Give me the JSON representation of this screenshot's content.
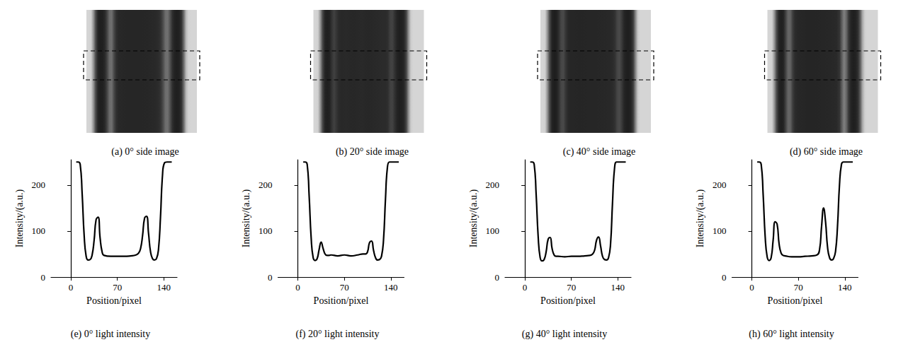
{
  "chart_data": [
    {
      "type": "line",
      "title": "(e) 0° light intensity",
      "image_caption": "(a) 0° side image",
      "x_label": "Position/pixel",
      "y_label": "Intensity/(a.u.)",
      "color": "#000000",
      "x": [
        8,
        11,
        14,
        17,
        20,
        23,
        26,
        29,
        32,
        35,
        38,
        41,
        44,
        47,
        50,
        60,
        70,
        80,
        90,
        98,
        102,
        105,
        108,
        111,
        114,
        117,
        120,
        123,
        126,
        129,
        132,
        135,
        138,
        141,
        145,
        152
      ],
      "values": [
        250,
        250,
        245,
        180,
        90,
        45,
        37,
        38,
        48,
        80,
        125,
        130,
        85,
        55,
        47,
        45,
        45,
        45,
        46,
        48,
        52,
        62,
        90,
        128,
        132,
        95,
        55,
        40,
        37,
        40,
        60,
        130,
        220,
        248,
        250,
        250
      ],
      "xlim": [
        -30,
        160
      ],
      "xticks": [
        0,
        70,
        140
      ],
      "ylim": [
        0,
        255
      ],
      "yticks": [
        0,
        100,
        200
      ],
      "grid": false
    },
    {
      "type": "line",
      "title": "(f) 20° light intensity",
      "image_caption": "(b) 20° side image",
      "x_label": "Position/pixel",
      "y_label": "Intensity/(a.u.)",
      "color": "#000000",
      "x": [
        8,
        11,
        14,
        17,
        20,
        23,
        26,
        29,
        32,
        35,
        38,
        41,
        44,
        47,
        50,
        60,
        70,
        80,
        90,
        98,
        102,
        105,
        108,
        111,
        114,
        117,
        120,
        123,
        126,
        129,
        132,
        135,
        138,
        141,
        145,
        152
      ],
      "values": [
        250,
        250,
        245,
        175,
        85,
        42,
        36,
        40,
        60,
        76,
        62,
        50,
        47,
        47,
        48,
        46,
        48,
        46,
        48,
        50,
        50,
        55,
        75,
        78,
        58,
        42,
        37,
        38,
        45,
        80,
        170,
        240,
        250,
        250,
        250,
        250
      ],
      "xlim": [
        -30,
        160
      ],
      "xticks": [
        0,
        70,
        140
      ],
      "ylim": [
        0,
        255
      ],
      "yticks": [
        0,
        100,
        200
      ],
      "grid": false
    },
    {
      "type": "line",
      "title": "(g) 40° light intensity",
      "image_caption": "(c) 40° side image",
      "x_label": "Position/pixel",
      "y_label": "Intensity/(a.u.)",
      "color": "#000000",
      "x": [
        8,
        11,
        14,
        17,
        20,
        23,
        26,
        29,
        32,
        35,
        38,
        41,
        44,
        47,
        50,
        60,
        70,
        80,
        90,
        98,
        102,
        105,
        108,
        111,
        114,
        117,
        120,
        123,
        126,
        129,
        132,
        135,
        138,
        141,
        145,
        152
      ],
      "values": [
        250,
        250,
        245,
        178,
        88,
        42,
        35,
        38,
        55,
        82,
        86,
        62,
        48,
        45,
        45,
        44,
        45,
        45,
        46,
        47,
        50,
        58,
        80,
        87,
        68,
        45,
        38,
        37,
        42,
        70,
        160,
        235,
        250,
        250,
        250,
        250
      ],
      "xlim": [
        -30,
        160
      ],
      "xticks": [
        0,
        70,
        140
      ],
      "ylim": [
        0,
        255
      ],
      "yticks": [
        0,
        100,
        200
      ],
      "grid": false
    },
    {
      "type": "line",
      "title": "(h) 60° light intensity",
      "image_caption": "(d) 60° side image",
      "x_label": "Position/pixel",
      "y_label": "Intensity/(a.u.)",
      "color": "#000000",
      "x": [
        8,
        11,
        14,
        17,
        20,
        23,
        26,
        29,
        32,
        35,
        38,
        41,
        44,
        47,
        50,
        60,
        70,
        80,
        90,
        98,
        102,
        105,
        108,
        111,
        114,
        117,
        120,
        123,
        126,
        129,
        132,
        135,
        138,
        141,
        145,
        152
      ],
      "values": [
        250,
        250,
        245,
        178,
        88,
        44,
        36,
        42,
        80,
        120,
        115,
        72,
        52,
        47,
        46,
        44,
        44,
        45,
        46,
        48,
        60,
        110,
        150,
        120,
        65,
        42,
        37,
        40,
        55,
        110,
        200,
        245,
        250,
        250,
        250,
        250
      ],
      "xlim": [
        -30,
        160
      ],
      "xticks": [
        0,
        70,
        140
      ],
      "ylim": [
        0,
        255
      ],
      "yticks": [
        0,
        100,
        200
      ],
      "grid": false
    }
  ]
}
